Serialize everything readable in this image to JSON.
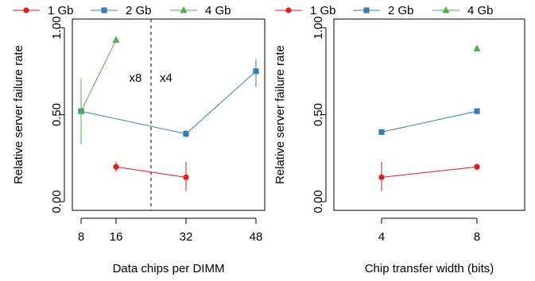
{
  "colors": {
    "1gb": "#e41a1c",
    "2gb": "#377eb8",
    "4gb": "#4daf4a"
  },
  "chart_data": [
    {
      "type": "line",
      "xlabel": "Data chips per DIMM",
      "ylabel": "Relative server failure rate",
      "xlim": [
        6,
        50
      ],
      "ylim": [
        -0.05,
        1.05
      ],
      "xticks": [
        8,
        16,
        32,
        48
      ],
      "yticks": [
        0.0,
        0.5,
        1.0
      ],
      "ytick_labels": [
        "0.00",
        "0.50",
        "1.00"
      ],
      "legend_position": "top",
      "vline": {
        "x": 24,
        "style": "dashed"
      },
      "annotations": [
        {
          "text": "x8",
          "x": 19,
          "y": 0.69
        },
        {
          "text": "x4",
          "x": 26,
          "y": 0.69
        }
      ],
      "series": [
        {
          "name": "1 Gb",
          "color": "#e41a1c",
          "marker": "circle",
          "x": [
            16,
            32
          ],
          "y": [
            0.2,
            0.14
          ],
          "err_low": [
            0.17,
            0.06
          ],
          "err_high": [
            0.23,
            0.23
          ]
        },
        {
          "name": "2 Gb",
          "color": "#377eb8",
          "marker": "square",
          "x": [
            8,
            32,
            48
          ],
          "y": [
            0.52,
            0.39,
            0.75
          ],
          "err_low": [
            0.51,
            0.37,
            0.66
          ],
          "err_high": [
            0.53,
            0.41,
            0.82
          ]
        },
        {
          "name": "4 Gb",
          "color": "#4daf4a",
          "marker": "triangle",
          "x": [
            8,
            16
          ],
          "y": [
            0.52,
            0.93
          ],
          "err_low": [
            0.33,
            0.92
          ],
          "err_high": [
            0.71,
            0.94
          ]
        }
      ]
    },
    {
      "type": "line",
      "xlabel": "Chip transfer width (bits)",
      "ylabel": "Relative server failure rate",
      "xlim": [
        2,
        10
      ],
      "ylim": [
        -0.05,
        1.05
      ],
      "xticks": [
        4,
        8
      ],
      "yticks": [
        0.0,
        0.5,
        1.0
      ],
      "ytick_labels": [
        "0.00",
        "0.50",
        "1.00"
      ],
      "legend_position": "top",
      "series": [
        {
          "name": "1 Gb",
          "color": "#e41a1c",
          "marker": "circle",
          "x": [
            4,
            8
          ],
          "y": [
            0.14,
            0.2
          ],
          "err_low": [
            0.06,
            0.18
          ],
          "err_high": [
            0.23,
            0.22
          ]
        },
        {
          "name": "2 Gb",
          "color": "#377eb8",
          "marker": "square",
          "x": [
            4,
            8
          ],
          "y": [
            0.4,
            0.52
          ],
          "err_low": [
            0.39,
            0.51
          ],
          "err_high": [
            0.41,
            0.53
          ]
        },
        {
          "name": "4 Gb",
          "color": "#4daf4a",
          "marker": "triangle",
          "x": [
            8
          ],
          "y": [
            0.88
          ],
          "err_low": [
            0.88
          ],
          "err_high": [
            0.88
          ]
        }
      ]
    }
  ]
}
